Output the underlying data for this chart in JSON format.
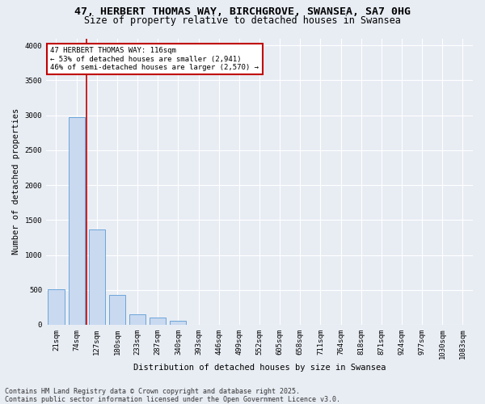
{
  "title_line1": "47, HERBERT THOMAS WAY, BIRCHGROVE, SWANSEA, SA7 0HG",
  "title_line2": "Size of property relative to detached houses in Swansea",
  "xlabel": "Distribution of detached houses by size in Swansea",
  "ylabel": "Number of detached properties",
  "categories": [
    "21sqm",
    "74sqm",
    "127sqm",
    "180sqm",
    "233sqm",
    "287sqm",
    "340sqm",
    "393sqm",
    "446sqm",
    "499sqm",
    "552sqm",
    "605sqm",
    "658sqm",
    "711sqm",
    "764sqm",
    "818sqm",
    "871sqm",
    "924sqm",
    "977sqm",
    "1030sqm",
    "1083sqm"
  ],
  "values": [
    510,
    2970,
    1360,
    430,
    150,
    100,
    60,
    0,
    0,
    0,
    0,
    0,
    0,
    0,
    0,
    0,
    0,
    0,
    0,
    0,
    0
  ],
  "bar_color": "#c9d9f0",
  "bar_edge_color": "#5b9bd5",
  "vline_x": 1.5,
  "vline_color": "#c00000",
  "annotation_text": "47 HERBERT THOMAS WAY: 116sqm\n← 53% of detached houses are smaller (2,941)\n46% of semi-detached houses are larger (2,570) →",
  "annotation_box_color": "#c00000",
  "annotation_text_color": "#000000",
  "annotation_bg": "#ffffff",
  "ylim": [
    0,
    4100
  ],
  "yticks": [
    0,
    500,
    1000,
    1500,
    2000,
    2500,
    3000,
    3500,
    4000
  ],
  "bg_color": "#e8edf4",
  "plot_bg_color": "#e8edf4",
  "grid_color": "#ffffff",
  "footer_line1": "Contains HM Land Registry data © Crown copyright and database right 2025.",
  "footer_line2": "Contains public sector information licensed under the Open Government Licence v3.0.",
  "title_fontsize": 9.5,
  "subtitle_fontsize": 8.5,
  "axis_label_fontsize": 7.5,
  "tick_fontsize": 6.5,
  "annotation_fontsize": 6.5,
  "footer_fontsize": 6
}
